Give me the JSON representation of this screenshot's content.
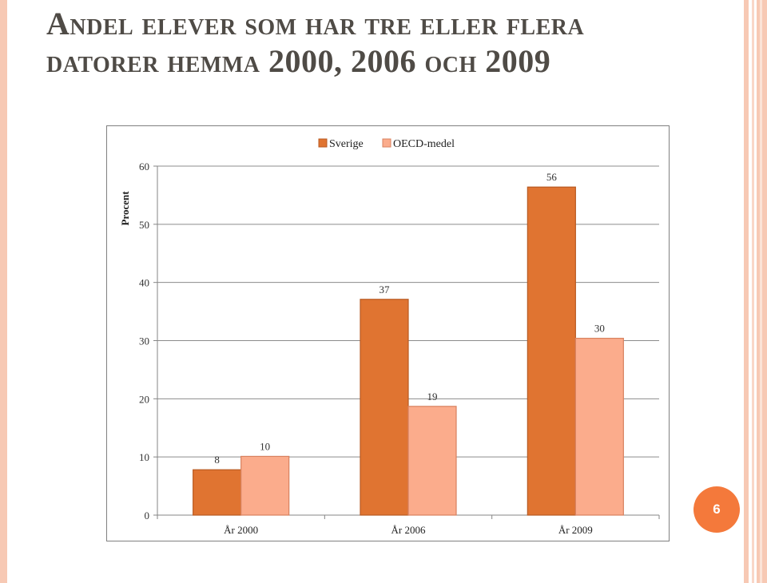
{
  "slide": {
    "title": "Andel elever som har tre eller flera datorer hemma 2000, 2006 och 2009",
    "page_number": "6"
  },
  "colors": {
    "sverige": "#e07431",
    "oecd": "#fbac8c",
    "badge": "#f4793b",
    "stripes": "#f7c9b4"
  },
  "chart_data": {
    "type": "bar",
    "categories": [
      "År 2000",
      "År 2006",
      "År 2009"
    ],
    "series": [
      {
        "name": "Sverige",
        "values": [
          8,
          37,
          56
        ],
        "value_labels": [
          "8",
          "37",
          "56"
        ],
        "display_values": [
          7.8,
          37.1,
          56.4
        ]
      },
      {
        "name": "OECD-medel",
        "values": [
          10,
          19,
          30
        ],
        "value_labels": [
          "10",
          "19",
          "30"
        ],
        "display_values": [
          10.1,
          18.7,
          30.4
        ]
      }
    ],
    "title": "",
    "xlabel": "",
    "ylabel": "Procent",
    "ylim": [
      0,
      60
    ],
    "yticks": [
      0,
      10,
      20,
      30,
      40,
      50,
      60
    ],
    "grid": true,
    "legend_position": "top"
  }
}
